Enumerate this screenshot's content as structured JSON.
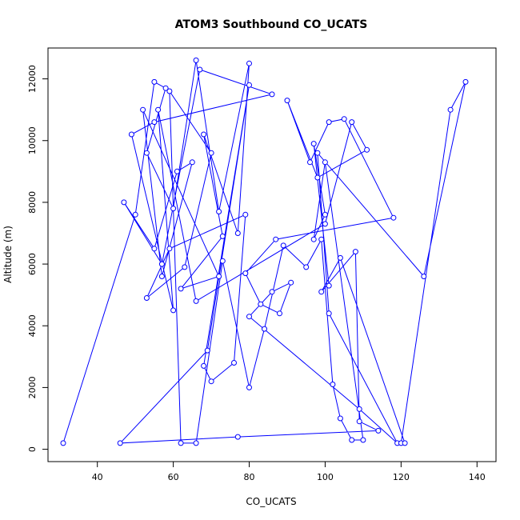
{
  "chart_data": {
    "type": "line",
    "title": "ATOM3 Southbound CO_UCATS",
    "xlabel": "CO_UCATS",
    "ylabel": "Altitude (m)",
    "xlim": [
      27,
      145
    ],
    "ylim": [
      -400,
      13000
    ],
    "xticks": [
      40,
      60,
      80,
      100,
      120,
      140
    ],
    "yticks": [
      0,
      2000,
      4000,
      6000,
      8000,
      10000,
      12000
    ],
    "grid": false,
    "color": "#0000ff",
    "series": [
      {
        "x": [
          31,
          50,
          55,
          58,
          53,
          60,
          66,
          72,
          80,
          77,
          68,
          73,
          62,
          72,
          52,
          57,
          65,
          61,
          55,
          47,
          57,
          67,
          86,
          55,
          49,
          60,
          56,
          66,
          100,
          107,
          111,
          98,
          90,
          96,
          101,
          105,
          118,
          87,
          79,
          83,
          88,
          91,
          86,
          80,
          109,
          119,
          101,
          98,
          126,
          137,
          133,
          120,
          121,
          104,
          99,
          108,
          109,
          114,
          77,
          46,
          69,
          80,
          68,
          70,
          76,
          79,
          59,
          53,
          63,
          70,
          59,
          62,
          66,
          73,
          80,
          84,
          89,
          95,
          99,
          102,
          104,
          107,
          110,
          100,
          97,
          100,
          97,
          101
        ],
        "y": [
          200,
          7600,
          11900,
          11700,
          9600,
          7800,
          12600,
          7700,
          12500,
          7000,
          10200,
          6900,
          5200,
          5600,
          11000,
          5600,
          9300,
          9000,
          6500,
          8000,
          6000,
          12300,
          11500,
          10600,
          10200,
          4500,
          11000,
          4800,
          7300,
          10600,
          9700,
          8800,
          11300,
          9300,
          10600,
          10700,
          7500,
          6800,
          5700,
          4700,
          4400,
          5400,
          5100,
          4300,
          1300,
          200,
          4400,
          9600,
          5600,
          11900,
          11000,
          200,
          200,
          6200,
          5100,
          6400,
          900,
          600,
          400,
          200,
          3200,
          11800,
          2700,
          2200,
          2800,
          7600,
          6500,
          4900,
          5900,
          9600,
          11600,
          200,
          200,
          6100,
          2000,
          3900,
          6600,
          5900,
          6800,
          2100,
          1000,
          300,
          300,
          9300,
          6800,
          7600,
          9900,
          5300
        ]
      }
    ]
  }
}
